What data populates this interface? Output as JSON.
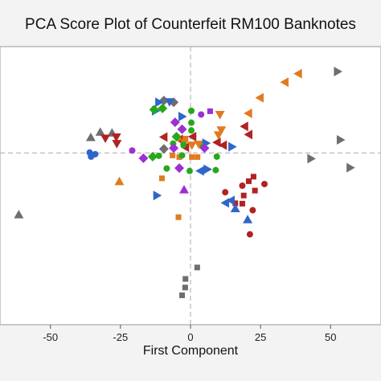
{
  "chart_data": {
    "type": "scatter",
    "title": "PCA Score Plot of Counterfeit RM100 Banknotes",
    "xlabel": "First Component",
    "ylabel": "",
    "xlim": [
      -68,
      68
    ],
    "ylim": [
      -42,
      26
    ],
    "xticks": [
      -50,
      -25,
      0,
      25,
      50
    ],
    "reference_lines": {
      "x": 0,
      "y": 0
    },
    "grid": false,
    "legend": "none",
    "points": [
      {
        "x": -35.6,
        "y": 3.8,
        "shape": "triangle-up",
        "color": "#6e6e6e"
      },
      {
        "x": -32.2,
        "y": 5.1,
        "shape": "triangle-up",
        "color": "#6e6e6e"
      },
      {
        "x": -28.0,
        "y": 4.9,
        "shape": "triangle-up",
        "color": "#6e6e6e"
      },
      {
        "x": -61.3,
        "y": -15.1,
        "shape": "triangle-up",
        "color": "#6e6e6e"
      },
      {
        "x": -9.5,
        "y": 12.8,
        "shape": "diamond",
        "color": "#6e6e6e"
      },
      {
        "x": -6.0,
        "y": 12.4,
        "shape": "diamond",
        "color": "#6e6e6e"
      },
      {
        "x": -9.5,
        "y": 1.0,
        "shape": "diamond",
        "color": "#6e6e6e"
      },
      {
        "x": 52.5,
        "y": 19.9,
        "shape": "triangle-right",
        "color": "#6e6e6e"
      },
      {
        "x": 53.5,
        "y": 3.2,
        "shape": "triangle-right",
        "color": "#6e6e6e"
      },
      {
        "x": 43.0,
        "y": -1.4,
        "shape": "triangle-right",
        "color": "#6e6e6e"
      },
      {
        "x": 57.0,
        "y": -3.6,
        "shape": "triangle-right",
        "color": "#6e6e6e"
      },
      {
        "x": 2.4,
        "y": -28.0,
        "shape": "square",
        "color": "#6e6e6e"
      },
      {
        "x": -1.8,
        "y": -30.8,
        "shape": "square",
        "color": "#6e6e6e"
      },
      {
        "x": -1.9,
        "y": -32.9,
        "shape": "square",
        "color": "#6e6e6e"
      },
      {
        "x": -3.0,
        "y": -34.8,
        "shape": "square",
        "color": "#6e6e6e"
      },
      {
        "x": -30.4,
        "y": 3.6,
        "shape": "triangle-down",
        "color": "#b22222"
      },
      {
        "x": -26.5,
        "y": 3.9,
        "shape": "triangle-down",
        "color": "#b22222"
      },
      {
        "x": -26.3,
        "y": 2.3,
        "shape": "triangle-down",
        "color": "#b22222"
      },
      {
        "x": -9.5,
        "y": 3.9,
        "shape": "triangle-left",
        "color": "#b22222"
      },
      {
        "x": -4.0,
        "y": 3.3,
        "shape": "triangle-left",
        "color": "#b22222"
      },
      {
        "x": 9.5,
        "y": 2.6,
        "shape": "triangle-left",
        "color": "#b22222"
      },
      {
        "x": 19.3,
        "y": 6.5,
        "shape": "triangle-left",
        "color": "#b22222"
      },
      {
        "x": 20.8,
        "y": 4.5,
        "shape": "triangle-left",
        "color": "#b22222"
      },
      {
        "x": 11.7,
        "y": 1.9,
        "shape": "triangle-left",
        "color": "#b22222"
      },
      {
        "x": 0.8,
        "y": 4.0,
        "shape": "triangle-left",
        "color": "#b22222"
      },
      {
        "x": -1.8,
        "y": 1.4,
        "shape": "triangle-left",
        "color": "#b22222"
      },
      {
        "x": 20.8,
        "y": -6.9,
        "shape": "square",
        "color": "#b22222"
      },
      {
        "x": 22.5,
        "y": -5.8,
        "shape": "square",
        "color": "#b22222"
      },
      {
        "x": 23.0,
        "y": -9.2,
        "shape": "square",
        "color": "#b22222"
      },
      {
        "x": 19.0,
        "y": -10.4,
        "shape": "square",
        "color": "#b22222"
      },
      {
        "x": 18.5,
        "y": -12.4,
        "shape": "square",
        "color": "#b22222"
      },
      {
        "x": 16.0,
        "y": -12.3,
        "shape": "square",
        "color": "#b22222"
      },
      {
        "x": 26.4,
        "y": -7.6,
        "shape": "circle",
        "color": "#b22222"
      },
      {
        "x": 18.5,
        "y": -8.0,
        "shape": "circle",
        "color": "#b22222"
      },
      {
        "x": 12.4,
        "y": -9.6,
        "shape": "circle",
        "color": "#b22222"
      },
      {
        "x": 22.2,
        "y": -14.0,
        "shape": "circle",
        "color": "#b22222"
      },
      {
        "x": 21.2,
        "y": -19.9,
        "shape": "circle",
        "color": "#b22222"
      },
      {
        "x": 38.5,
        "y": 19.4,
        "shape": "triangle-left",
        "color": "#e07b1f"
      },
      {
        "x": 33.7,
        "y": 17.3,
        "shape": "triangle-left",
        "color": "#e07b1f"
      },
      {
        "x": 24.8,
        "y": 13.5,
        "shape": "triangle-left",
        "color": "#e07b1f"
      },
      {
        "x": 20.7,
        "y": 9.7,
        "shape": "triangle-left",
        "color": "#e07b1f"
      },
      {
        "x": 10.5,
        "y": 9.4,
        "shape": "triangle-down",
        "color": "#e07b1f"
      },
      {
        "x": 11.0,
        "y": 5.6,
        "shape": "triangle-down",
        "color": "#e07b1f"
      },
      {
        "x": 10.0,
        "y": 4.4,
        "shape": "triangle-down",
        "color": "#e07b1f"
      },
      {
        "x": 0.5,
        "y": 1.9,
        "shape": "triangle-down",
        "color": "#e07b1f"
      },
      {
        "x": 3.0,
        "y": 2.1,
        "shape": "triangle-down",
        "color": "#e07b1f"
      },
      {
        "x": -25.4,
        "y": -7.0,
        "shape": "triangle-up",
        "color": "#e07b1f"
      },
      {
        "x": -1.8,
        "y": 3.5,
        "shape": "square",
        "color": "#e07b1f"
      },
      {
        "x": -10.2,
        "y": -6.2,
        "shape": "square",
        "color": "#e07b1f"
      },
      {
        "x": -4.0,
        "y": -1.0,
        "shape": "square",
        "color": "#e07b1f"
      },
      {
        "x": -6.4,
        "y": -0.6,
        "shape": "square",
        "color": "#e07b1f"
      },
      {
        "x": 0.5,
        "y": -1.0,
        "shape": "square",
        "color": "#e07b1f"
      },
      {
        "x": 2.5,
        "y": -1.0,
        "shape": "square",
        "color": "#e07b1f"
      },
      {
        "x": -4.3,
        "y": -15.7,
        "shape": "square",
        "color": "#e07b1f"
      },
      {
        "x": -4.4,
        "y": 3.6,
        "shape": "circle",
        "color": "#e07b1f"
      },
      {
        "x": -2.3,
        "y": 2.8,
        "shape": "circle",
        "color": "#e07b1f"
      },
      {
        "x": -7.5,
        "y": 12.5,
        "shape": "triangle-down",
        "color": "#2e66c9"
      },
      {
        "x": -11.3,
        "y": 12.4,
        "shape": "triangle-right",
        "color": "#2e66c9"
      },
      {
        "x": -12.5,
        "y": 10.3,
        "shape": "triangle-right",
        "color": "#2e66c9"
      },
      {
        "x": -3.0,
        "y": 8.9,
        "shape": "triangle-right",
        "color": "#2e66c9"
      },
      {
        "x": 5.5,
        "y": 2.4,
        "shape": "triangle-right",
        "color": "#2e66c9"
      },
      {
        "x": 14.8,
        "y": 1.5,
        "shape": "triangle-right",
        "color": "#2e66c9"
      },
      {
        "x": -12.0,
        "y": -10.4,
        "shape": "triangle-right",
        "color": "#2e66c9"
      },
      {
        "x": 6.0,
        "y": -4.0,
        "shape": "triangle-right",
        "color": "#2e66c9"
      },
      {
        "x": 3.5,
        "y": -4.4,
        "shape": "triangle-left",
        "color": "#2e66c9"
      },
      {
        "x": 14.5,
        "y": -11.6,
        "shape": "triangle-left",
        "color": "#2e66c9"
      },
      {
        "x": 12.5,
        "y": -12.2,
        "shape": "triangle-left",
        "color": "#2e66c9"
      },
      {
        "x": 16.0,
        "y": -13.6,
        "shape": "triangle-up",
        "color": "#2e66c9"
      },
      {
        "x": 20.4,
        "y": -16.3,
        "shape": "triangle-up",
        "color": "#2e66c9"
      },
      {
        "x": -36.0,
        "y": 0.1,
        "shape": "circle",
        "color": "#2e66c9"
      },
      {
        "x": -34.0,
        "y": -0.3,
        "shape": "circle",
        "color": "#2e66c9"
      },
      {
        "x": -35.5,
        "y": -0.9,
        "shape": "circle",
        "color": "#2e66c9"
      },
      {
        "x": -13.0,
        "y": 10.6,
        "shape": "diamond",
        "color": "#27a81a"
      },
      {
        "x": -10.0,
        "y": 10.9,
        "shape": "diamond",
        "color": "#27a81a"
      },
      {
        "x": -5.0,
        "y": 4.0,
        "shape": "diamond",
        "color": "#27a81a"
      },
      {
        "x": -13.5,
        "y": -0.9,
        "shape": "diamond",
        "color": "#27a81a"
      },
      {
        "x": 0.3,
        "y": 10.3,
        "shape": "circle",
        "color": "#27a81a"
      },
      {
        "x": 0.3,
        "y": 7.4,
        "shape": "circle",
        "color": "#27a81a"
      },
      {
        "x": 0.3,
        "y": 5.5,
        "shape": "circle",
        "color": "#27a81a"
      },
      {
        "x": -6.2,
        "y": 2.3,
        "shape": "circle",
        "color": "#27a81a"
      },
      {
        "x": -2.5,
        "y": 2.0,
        "shape": "circle",
        "color": "#27a81a"
      },
      {
        "x": 4.5,
        "y": 1.5,
        "shape": "circle",
        "color": "#27a81a"
      },
      {
        "x": -11.3,
        "y": -0.7,
        "shape": "circle",
        "color": "#27a81a"
      },
      {
        "x": -3.0,
        "y": -0.6,
        "shape": "circle",
        "color": "#27a81a"
      },
      {
        "x": 9.4,
        "y": -0.9,
        "shape": "circle",
        "color": "#27a81a"
      },
      {
        "x": -8.5,
        "y": -3.8,
        "shape": "circle",
        "color": "#27a81a"
      },
      {
        "x": -0.3,
        "y": -4.4,
        "shape": "circle",
        "color": "#27a81a"
      },
      {
        "x": 9.0,
        "y": -4.2,
        "shape": "circle",
        "color": "#27a81a"
      },
      {
        "x": -5.5,
        "y": 7.5,
        "shape": "diamond",
        "color": "#9b30d3"
      },
      {
        "x": -3.0,
        "y": 5.8,
        "shape": "diamond",
        "color": "#9b30d3"
      },
      {
        "x": -6.0,
        "y": 1.2,
        "shape": "diamond",
        "color": "#9b30d3"
      },
      {
        "x": -16.8,
        "y": -1.3,
        "shape": "diamond",
        "color": "#9b30d3"
      },
      {
        "x": -4.0,
        "y": -3.7,
        "shape": "diamond",
        "color": "#9b30d3"
      },
      {
        "x": 5.0,
        "y": 1.2,
        "shape": "diamond",
        "color": "#9b30d3"
      },
      {
        "x": -2.3,
        "y": -9.0,
        "shape": "triangle-up",
        "color": "#9b30d3"
      },
      {
        "x": 3.8,
        "y": 9.4,
        "shape": "circle",
        "color": "#9b30d3"
      },
      {
        "x": -20.8,
        "y": 0.6,
        "shape": "circle",
        "color": "#9b30d3"
      },
      {
        "x": 7.0,
        "y": 10.2,
        "shape": "square",
        "color": "#9b30d3"
      }
    ]
  }
}
